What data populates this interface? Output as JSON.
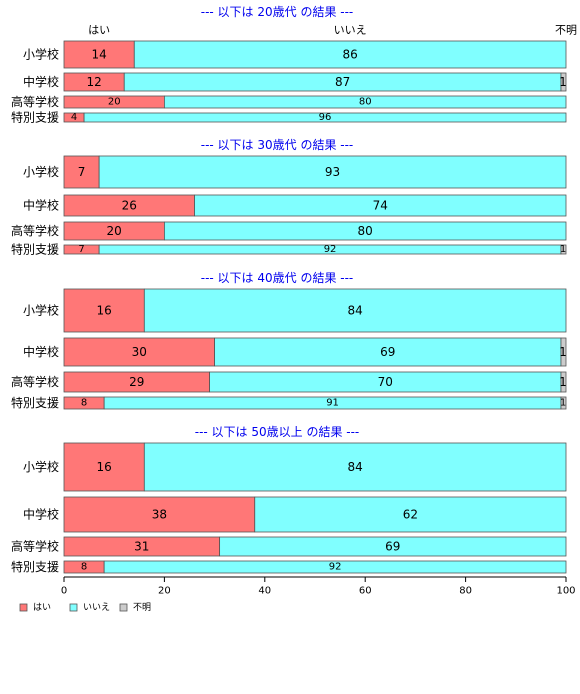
{
  "chart_data": {
    "type": "bar",
    "orientation": "horizontal",
    "stacked": true,
    "xlim": [
      0,
      100
    ],
    "x_ticks": [
      "0",
      "20",
      "40",
      "60",
      "80",
      "100"
    ],
    "column_headers": [
      "はい",
      "いいえ",
      "不明"
    ],
    "series_names": [
      "はい",
      "いいえ",
      "不明"
    ],
    "colors": {
      "yes": "#ff7777",
      "no": "#80ffff",
      "unknown": "#cccccc"
    },
    "legend": {
      "position": "bottom-left",
      "items": [
        {
          "label": "はい",
          "color": "#ff7777"
        },
        {
          "label": "いいえ",
          "color": "#80ffff"
        },
        {
          "label": "不明",
          "color": "#cccccc"
        }
      ]
    },
    "panels": [
      {
        "title": "--- 以下は 20歳代 の結果 ---",
        "rows": [
          {
            "label": "小学校",
            "values": [
              14,
              86,
              0
            ]
          },
          {
            "label": "中学校",
            "values": [
              12,
              87,
              1
            ]
          },
          {
            "label": "高等学校",
            "values": [
              20,
              80,
              0
            ]
          },
          {
            "label": "特別支援",
            "values": [
              4,
              96,
              0
            ]
          }
        ]
      },
      {
        "title": "--- 以下は 30歳代 の結果 ---",
        "rows": [
          {
            "label": "小学校",
            "values": [
              7,
              93,
              0
            ]
          },
          {
            "label": "中学校",
            "values": [
              26,
              74,
              0
            ]
          },
          {
            "label": "高等学校",
            "values": [
              20,
              80,
              0
            ]
          },
          {
            "label": "特別支援",
            "values": [
              7,
              92,
              1
            ]
          }
        ]
      },
      {
        "title": "--- 以下は 40歳代 の結果 ---",
        "rows": [
          {
            "label": "小学校",
            "values": [
              16,
              84,
              0
            ]
          },
          {
            "label": "中学校",
            "values": [
              30,
              69,
              1
            ]
          },
          {
            "label": "高等学校",
            "values": [
              29,
              70,
              1
            ]
          },
          {
            "label": "特別支援",
            "values": [
              8,
              91,
              1
            ]
          }
        ]
      },
      {
        "title": "--- 以下は 50歳以上 の結果 ---",
        "rows": [
          {
            "label": "小学校",
            "values": [
              16,
              84,
              0
            ]
          },
          {
            "label": "中学校",
            "values": [
              38,
              62,
              0
            ]
          },
          {
            "label": "高等学校",
            "values": [
              31,
              69,
              0
            ]
          },
          {
            "label": "特別支援",
            "values": [
              8,
              92,
              0
            ]
          }
        ]
      }
    ]
  }
}
